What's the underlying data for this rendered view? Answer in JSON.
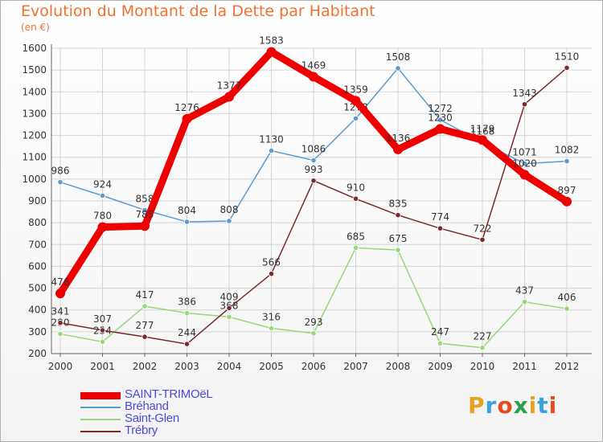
{
  "title": "Evolution du Montant de la Dette par Habitant",
  "unit_label": "(en €)",
  "logo": {
    "text": "Proxiti",
    "colors": [
      "#e8a020",
      "#3aa0e0",
      "#e84a20",
      "#2aa04a",
      "#e8a020",
      "#3aa0e0",
      "#e84a20"
    ]
  },
  "chart_data": {
    "type": "line",
    "x": [
      "2000",
      "2001",
      "2002",
      "2003",
      "2004",
      "2005",
      "2006",
      "2007",
      "2008",
      "2009",
      "2010",
      "2011",
      "2012"
    ],
    "ylim": [
      200,
      1600
    ],
    "yticks": [
      200,
      300,
      400,
      500,
      600,
      700,
      800,
      900,
      1000,
      1100,
      1200,
      1300,
      1400,
      1500,
      1600
    ],
    "grid": true,
    "legend_position": "bottom-left",
    "series": [
      {
        "name": "Bréhand",
        "color": "#5a9bd0",
        "values": [
          986,
          924,
          858,
          804,
          808,
          1130,
          1086,
          1278,
          1508,
          1272,
          1168,
          1071,
          1082
        ],
        "labels": [
          "986",
          "924",
          "858",
          "804",
          "808",
          "1130",
          "1086",
          "1278",
          "1508",
          "1272",
          "1168",
          "1071",
          "1082"
        ]
      },
      {
        "name": "Saint-Glen",
        "color": "#98d878",
        "values": [
          290,
          254,
          417,
          386,
          368,
          316,
          293,
          685,
          675,
          247,
          227,
          437,
          406
        ],
        "labels": [
          "290",
          "254",
          "417",
          "386",
          "368",
          "316",
          "293",
          "685",
          "675",
          "247",
          "227",
          "437",
          "406"
        ]
      },
      {
        "name": "Trébry",
        "color": "#7a2a2a",
        "values": [
          341,
          307,
          277,
          244,
          409,
          566,
          993,
          910,
          835,
          774,
          722,
          1343,
          1510
        ],
        "labels": [
          "341",
          "307",
          "277",
          "244",
          "409",
          "566",
          "993",
          "910",
          "835",
          "774",
          "722",
          "1343",
          "1510"
        ]
      },
      {
        "name": "SAINT-TRIMOëL",
        "color": "#ee0000",
        "values": [
          476,
          780,
          785,
          1276,
          1377,
          1583,
          1469,
          1359,
          1136,
          1230,
          1179,
          1020,
          897
        ],
        "labels": [
          "476",
          "780",
          "785",
          "1276",
          "1377",
          "1583",
          "1469",
          "1359",
          "1136",
          "1230",
          "1179",
          "1020",
          "897"
        ]
      }
    ],
    "legend_order": [
      "SAINT-TRIMOëL",
      "Bréhand",
      "Saint-Glen",
      "Trébry"
    ]
  }
}
